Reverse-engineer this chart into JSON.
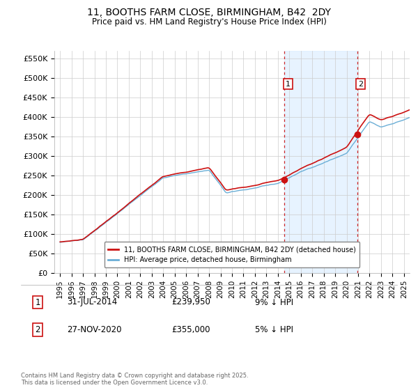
{
  "title": "11, BOOTHS FARM CLOSE, BIRMINGHAM, B42  2DY",
  "subtitle": "Price paid vs. HM Land Registry's House Price Index (HPI)",
  "ylabel_ticks": [
    "£0",
    "£50K",
    "£100K",
    "£150K",
    "£200K",
    "£250K",
    "£300K",
    "£350K",
    "£400K",
    "£450K",
    "£500K",
    "£550K"
  ],
  "ytick_values": [
    0,
    50000,
    100000,
    150000,
    200000,
    250000,
    300000,
    350000,
    400000,
    450000,
    500000,
    550000
  ],
  "ylim": [
    0,
    570000
  ],
  "xlim_start": 1994.5,
  "xlim_end": 2025.5,
  "hpi_color": "#6aaed6",
  "hpi_fill_color": "#ddeeff",
  "price_color": "#cc1111",
  "marker1_date": 2014.58,
  "marker2_date": 2020.92,
  "marker1_price": 239950,
  "marker2_price": 355000,
  "legend_label_price": "11, BOOTHS FARM CLOSE, BIRMINGHAM, B42 2DY (detached house)",
  "legend_label_hpi": "HPI: Average price, detached house, Birmingham",
  "annotation1": [
    "1",
    "31-JUL-2014",
    "£239,950",
    "9% ↓ HPI"
  ],
  "annotation2": [
    "2",
    "27-NOV-2020",
    "£355,000",
    "5% ↓ HPI"
  ],
  "footer": "Contains HM Land Registry data © Crown copyright and database right 2025.\nThis data is licensed under the Open Government Licence v3.0.",
  "background_color": "#ffffff"
}
